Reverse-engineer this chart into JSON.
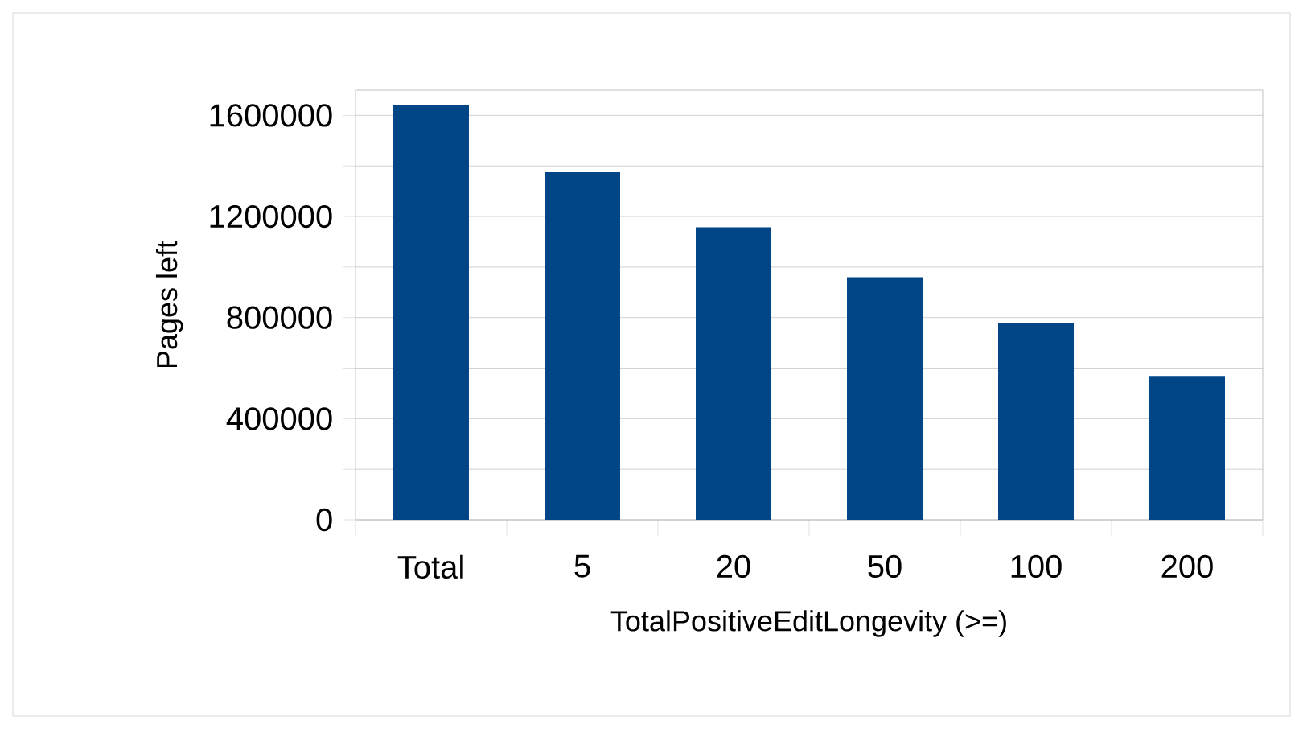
{
  "chart_data": {
    "type": "bar",
    "xlabel": "TotalPositiveEditLongevity (>=)",
    "ylabel": "Pages left",
    "categories": [
      "Total",
      "5",
      "20",
      "50",
      "100",
      "200"
    ],
    "values": [
      1640000,
      1375000,
      1157000,
      960000,
      780000,
      569000
    ],
    "color": "#004586",
    "ylim": [
      0,
      1700000
    ],
    "yticks": [
      0,
      {
        "value": 200000,
        "label": null
      },
      400000,
      {
        "value": 600000,
        "label": null
      },
      800000,
      {
        "value": 1000000,
        "label": null
      },
      1200000,
      {
        "value": 1400000,
        "label": null
      },
      1600000
    ],
    "grid": "y"
  }
}
